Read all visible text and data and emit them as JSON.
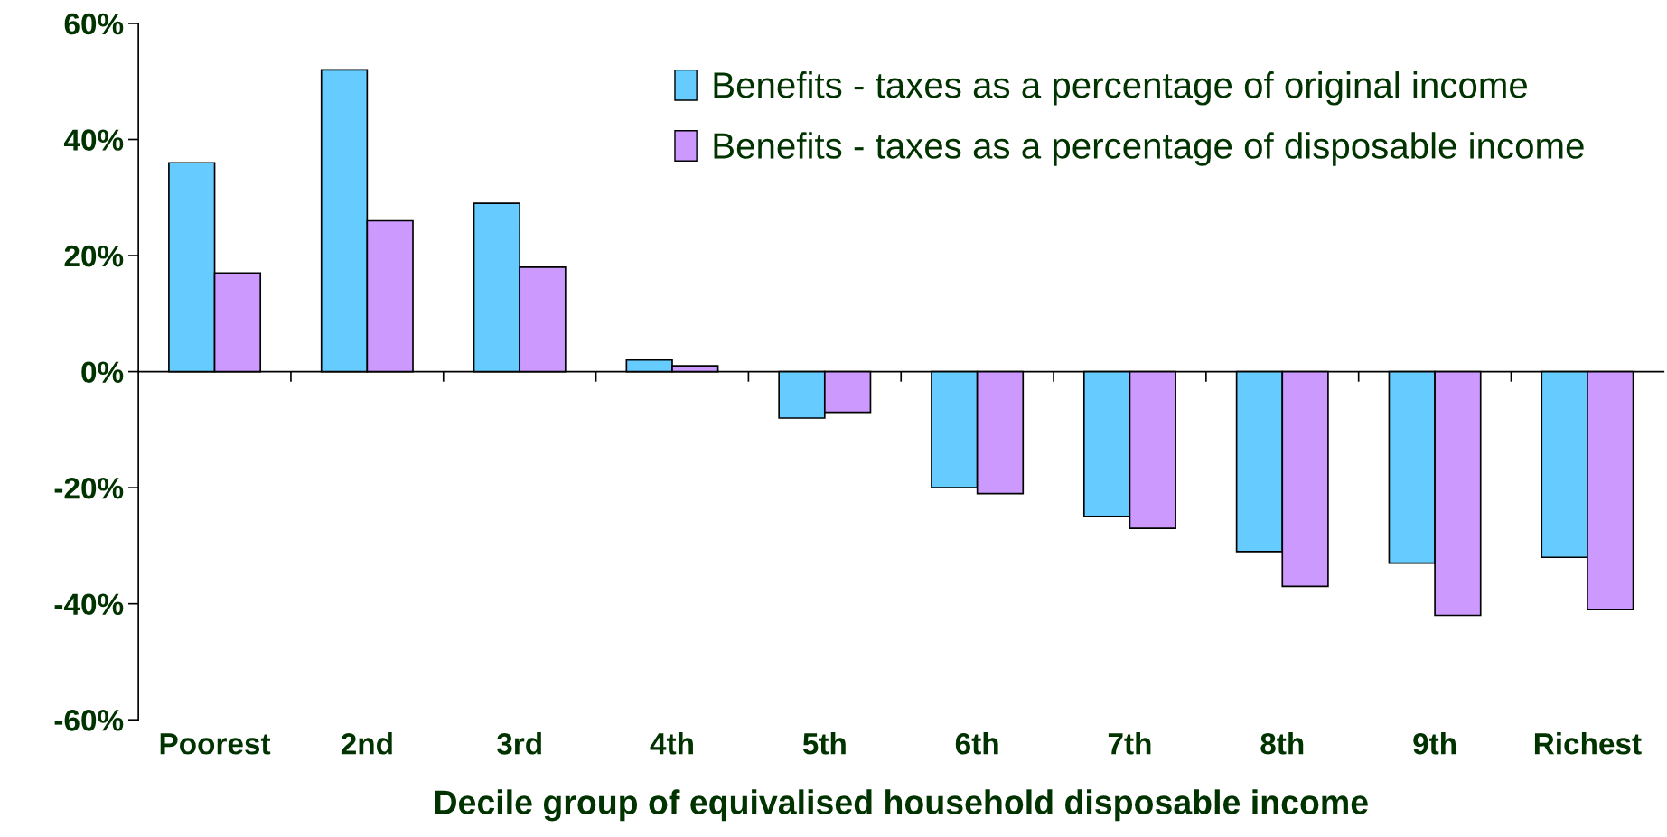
{
  "chart_data": {
    "type": "bar",
    "xlabel": "Decile group of equivalised household disposable income",
    "categories": [
      "Poorest",
      "2nd",
      "3rd",
      "4th",
      "5th",
      "6th",
      "7th",
      "8th",
      "9th",
      "Richest"
    ],
    "series": [
      {
        "name": "Benefits - taxes as a percentage of original income",
        "color": "#66ccff",
        "values": [
          36,
          52,
          29,
          2,
          -8,
          -20,
          -25,
          -31,
          -33,
          -32
        ]
      },
      {
        "name": "Benefits - taxes as a percentage of disposable income",
        "color": "#cc99ff",
        "values": [
          17,
          26,
          18,
          1,
          -7,
          -21,
          -27,
          -37,
          -42,
          -41
        ]
      }
    ],
    "ylim": [
      -60,
      60
    ],
    "yticks": [
      {
        "value": -60,
        "label": "-60%"
      },
      {
        "value": -40,
        "label": "-40%"
      },
      {
        "value": -20,
        "label": "-20%"
      },
      {
        "value": 0,
        "label": "0%"
      },
      {
        "value": 20,
        "label": "20%"
      },
      {
        "value": 40,
        "label": "40%"
      },
      {
        "value": 60,
        "label": "60%"
      }
    ],
    "legend": "top right"
  }
}
